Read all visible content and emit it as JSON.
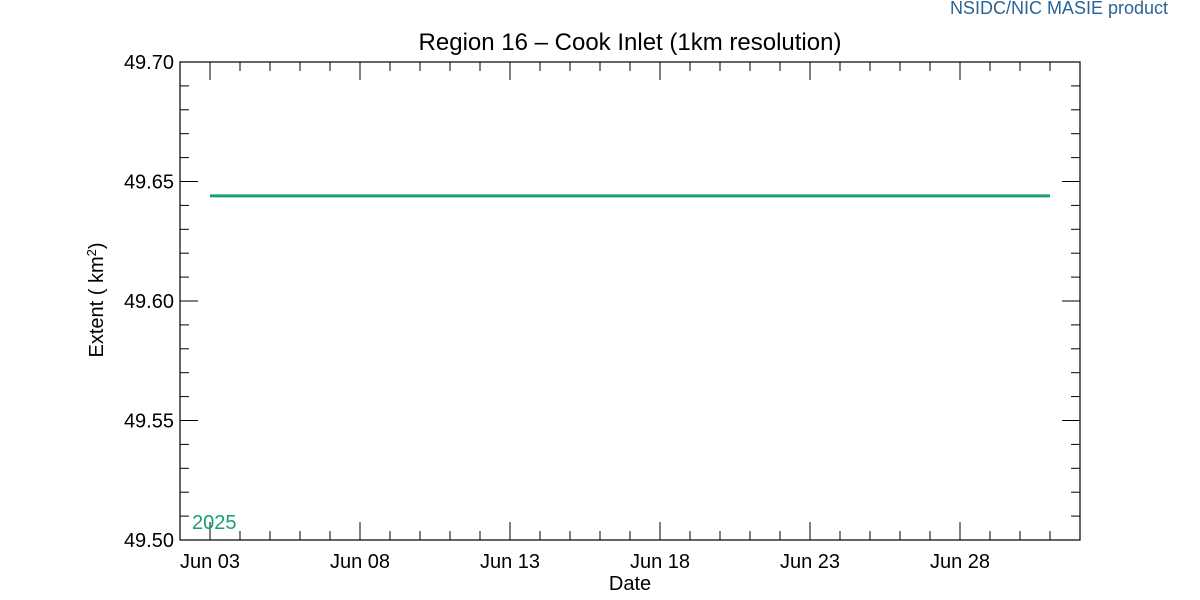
{
  "credit": "NSIDC/NIC MASIE product",
  "chart_data": {
    "type": "line",
    "title": "Region 16 – Cook Inlet (1km resolution)",
    "xlabel": "Date",
    "ylabel": "Extent ( km²)",
    "x_start": "Jun 02",
    "x_end": "Jul 02",
    "x_ticks": [
      "Jun 03",
      "Jun 08",
      "Jun 13",
      "Jun 18",
      "Jun 23",
      "Jun 28"
    ],
    "ylim": [
      49.5,
      49.7
    ],
    "y_ticks": [
      "49.50",
      "49.55",
      "49.60",
      "49.65",
      "49.70"
    ],
    "grid": false,
    "series": [
      {
        "name": "2025",
        "color": "#1a9e77",
        "x": [
          "Jun 03",
          "Jul 01"
        ],
        "values": [
          49.644,
          49.644
        ]
      }
    ]
  }
}
